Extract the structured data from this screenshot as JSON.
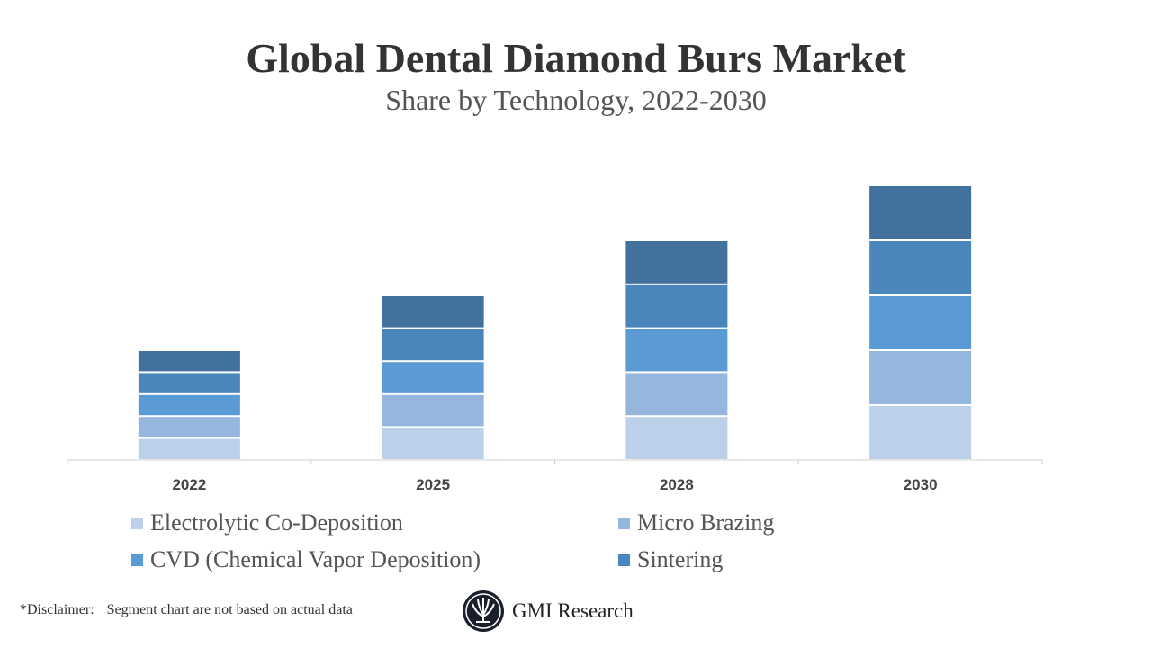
{
  "chart_data": {
    "type": "bar",
    "stacked": true,
    "title": "Global Dental Diamond Burs Market",
    "subtitle": "Share by Technology, 2022-2030",
    "categories": [
      "2022",
      "2025",
      "2028",
      "2030"
    ],
    "series": [
      {
        "name": "Electrolytic Co-Deposition",
        "color": "#bdd0e9",
        "values": [
          1,
          1.5,
          2,
          2.5
        ]
      },
      {
        "name": "Micro Brazing",
        "color": "#95b7de",
        "values": [
          1,
          1.5,
          2,
          2.5
        ]
      },
      {
        "name": "CVD (Chemical Vapor Deposition)",
        "color": "#5b9bd5",
        "values": [
          1,
          1.5,
          2,
          2.5
        ]
      },
      {
        "name": "Sintering",
        "color": "#4a86bb",
        "values": [
          1,
          1.5,
          2,
          2.5
        ]
      },
      {
        "color": "#41719c",
        "values": [
          1,
          1.5,
          2,
          2.5
        ]
      }
    ],
    "y_axis_visible": false,
    "grid": false,
    "legend": "bottom"
  },
  "disclaimer": {
    "label": "*Disclaimer:",
    "text": "Segment chart are not based on actual data"
  },
  "logo": {
    "text": "GMI Research"
  }
}
